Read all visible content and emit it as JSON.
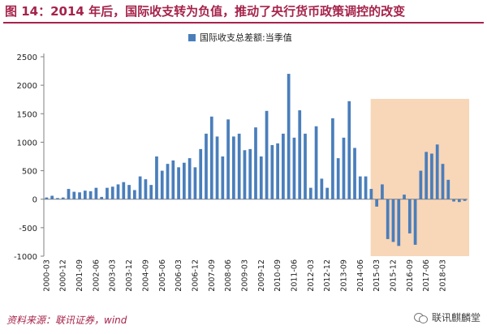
{
  "header": {
    "title": "图 14：2014 年后，国际收支转为负值，推动了央行货币政策调控的改变"
  },
  "footer": {
    "source": "资料来源：联讯证券，wind",
    "watermark": "联讯麒麟堂",
    "watermark_icon": "wechat-icon"
  },
  "colors": {
    "title": "#a6234b",
    "bar": "#4a7ebb",
    "highlight": "#f8d6b8",
    "axis": "#7f7f7f"
  },
  "chart_data": {
    "type": "bar",
    "title": "",
    "xlabel": "",
    "ylabel": "",
    "ylim": [
      -1000,
      2500
    ],
    "yticks": [
      -1000,
      -500,
      0,
      500,
      1000,
      1500,
      2000,
      2500
    ],
    "legend": "top-center",
    "grid": false,
    "highlight_region": {
      "from": "2015-03",
      "to": "2019-03",
      "description": "shaded period"
    },
    "categories": [
      "2000-03",
      "2000-06",
      "2000-09",
      "2000-12",
      "2001-03",
      "2001-06",
      "2001-09",
      "2001-12",
      "2002-03",
      "2002-06",
      "2002-09",
      "2002-12",
      "2003-03",
      "2003-06",
      "2003-09",
      "2003-12",
      "2004-03",
      "2004-06",
      "2004-09",
      "2004-12",
      "2005-03",
      "2005-06",
      "2005-09",
      "2005-12",
      "2006-03",
      "2006-06",
      "2006-09",
      "2006-12",
      "2007-03",
      "2007-06",
      "2007-09",
      "2007-12",
      "2008-03",
      "2008-06",
      "2008-09",
      "2008-12",
      "2009-03",
      "2009-06",
      "2009-09",
      "2009-12",
      "2010-03",
      "2010-06",
      "2010-09",
      "2010-12",
      "2011-03",
      "2011-06",
      "2011-09",
      "2011-12",
      "2012-03",
      "2012-06",
      "2012-09",
      "2012-12",
      "2013-03",
      "2013-06",
      "2013-09",
      "2013-12",
      "2014-03",
      "2014-06",
      "2014-09",
      "2014-12",
      "2015-03",
      "2015-06",
      "2015-09",
      "2015-12",
      "2016-03",
      "2016-06",
      "2016-09",
      "2016-12",
      "2017-03",
      "2017-06",
      "2017-09",
      "2017-12",
      "2018-03",
      "2018-06",
      "2018-09",
      "2018-12",
      "2019-03"
    ],
    "xtick_labels": [
      "2000-03",
      "2000-12",
      "2001-09",
      "2002-06",
      "2003-03",
      "2003-12",
      "2004-09",
      "2005-06",
      "2006-03",
      "2006-12",
      "2007-09",
      "2008-06",
      "2009-03",
      "2009-12",
      "2010-09",
      "2011-06",
      "2012-03",
      "2012-12",
      "2013-09",
      "2014-06",
      "2015-03",
      "2015-12",
      "2016-09",
      "2017-06",
      "2018-03"
    ],
    "series": [
      {
        "name": "国际收支总差额:当季值",
        "values": [
          30,
          60,
          20,
          30,
          180,
          130,
          120,
          150,
          140,
          200,
          40,
          200,
          220,
          260,
          300,
          250,
          160,
          400,
          350,
          250,
          750,
          500,
          620,
          680,
          560,
          640,
          720,
          560,
          880,
          1150,
          1450,
          1100,
          750,
          1400,
          1100,
          1150,
          860,
          880,
          1260,
          750,
          1550,
          950,
          980,
          1150,
          2200,
          1080,
          1560,
          1150,
          200,
          1280,
          360,
          200,
          1420,
          720,
          1080,
          1720,
          900,
          400,
          400,
          180,
          -130,
          260,
          -700,
          -750,
          -820,
          80,
          -600,
          -800,
          500,
          830,
          800,
          960,
          620,
          340,
          -40,
          -50,
          -30
        ]
      }
    ]
  }
}
